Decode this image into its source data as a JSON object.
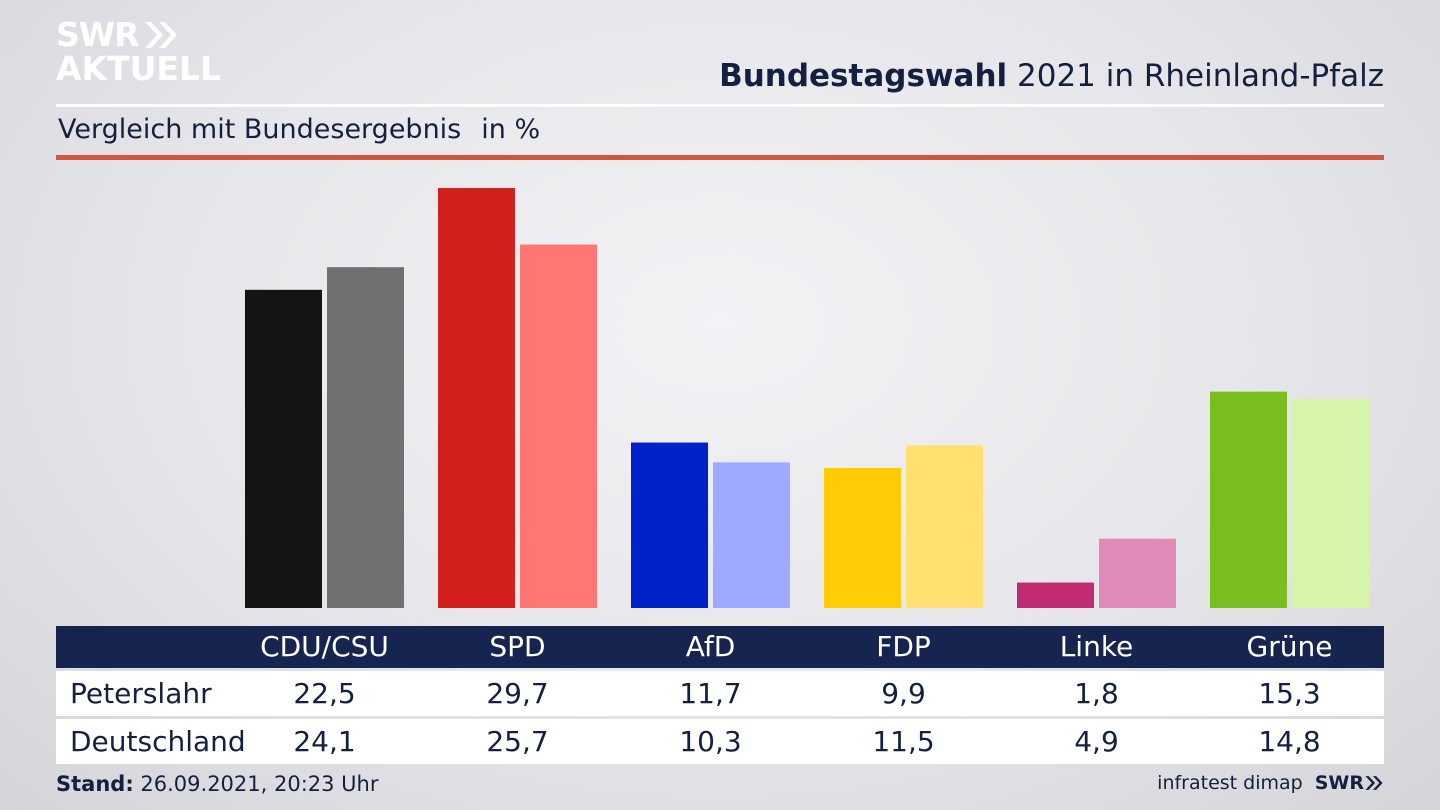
{
  "header": {
    "logo_line1": "SWR",
    "logo_line2": "AKTUELL",
    "title_strong": "Bundestagswahl",
    "title_rest": " 2021 in Rheinland-Pfalz",
    "subtitle": "Vergleich mit Bundesergebnis",
    "unit": "in %"
  },
  "footer": {
    "stand_label": "Stand:",
    "stand_value": " 26.09.2021, 20:23 Uhr",
    "source": "infratest dimap",
    "brand": "SWR"
  },
  "chart_data": {
    "type": "bar",
    "categories": [
      "CDU/CSU",
      "SPD",
      "AfD",
      "FDP",
      "Linke",
      "Grüne"
    ],
    "series": [
      {
        "name": "Peterslahr",
        "values": [
          22.5,
          29.7,
          11.7,
          9.9,
          1.8,
          15.3
        ]
      },
      {
        "name": "Deutschland",
        "values": [
          24.1,
          25.7,
          10.3,
          11.5,
          4.9,
          14.8
        ]
      }
    ],
    "value_labels": {
      "Peterslahr": [
        "22,5",
        "29,7",
        "11,7",
        "9,9",
        "1,8",
        "15,3"
      ],
      "Deutschland": [
        "24,1",
        "25,7",
        "10,3",
        "11,5",
        "4,9",
        "14,8"
      ]
    },
    "colors": {
      "Peterslahr": [
        "#141414",
        "#d41f1f",
        "#0022c8",
        "#ffcc05",
        "#bf2c72",
        "#78be1e"
      ],
      "Deutschland": [
        "#717070",
        "#ff7672",
        "#9eaaff",
        "#ffe070",
        "#e08ab8",
        "#d6f5aa"
      ]
    },
    "ylim": [
      0,
      30
    ],
    "grid": false,
    "legend": "table-below"
  }
}
